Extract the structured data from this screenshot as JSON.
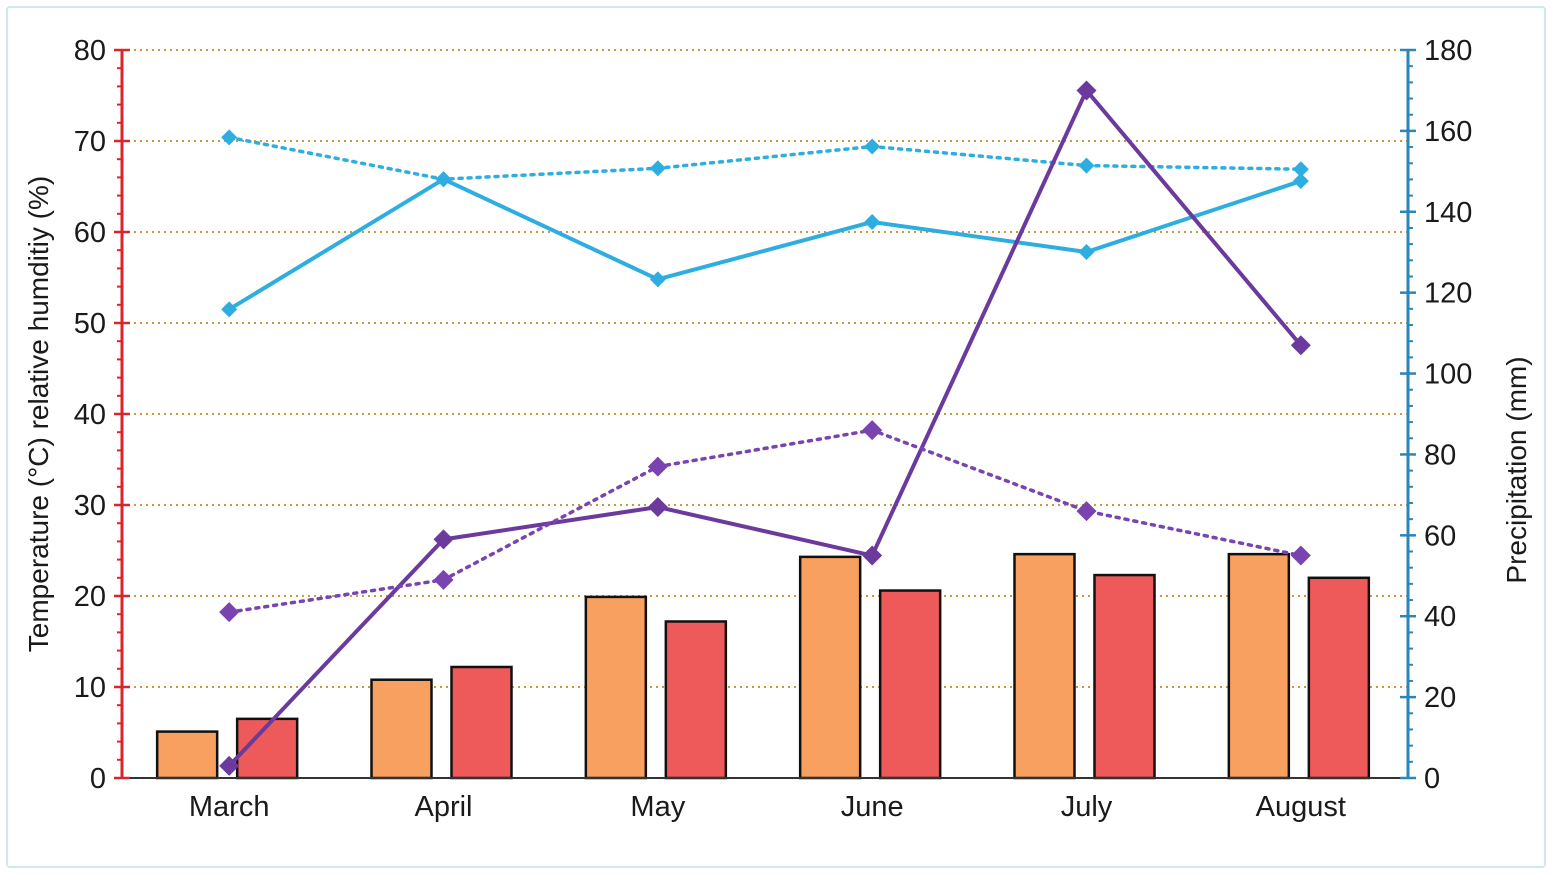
{
  "chart_data": {
    "type": "bar",
    "categories": [
      "March",
      "April",
      "May",
      "June",
      "July",
      "August"
    ],
    "y_left": {
      "label": "Temperature (°C) relative humditiy (%)",
      "range": [
        0,
        80
      ],
      "ticks": [
        0,
        10,
        20,
        30,
        40,
        50,
        60,
        70,
        80
      ],
      "axis_color": "#d9262b"
    },
    "y_right": {
      "label": "Precipitation (mm)",
      "range": [
        0,
        180
      ],
      "ticks": [
        0,
        20,
        40,
        60,
        80,
        100,
        120,
        140,
        160,
        180
      ],
      "axis_color": "#2a86b8"
    },
    "grid": {
      "horizontal": true,
      "style": "dotted",
      "color": "#c99a3c"
    },
    "series": [
      {
        "kind": "bar",
        "axis": "left",
        "color": "#f7a060",
        "values": [
          5.1,
          10.8,
          19.9,
          24.3,
          24.6,
          24.6
        ]
      },
      {
        "kind": "bar",
        "axis": "left",
        "color": "#ee5a5a",
        "values": [
          6.5,
          12.2,
          17.2,
          20.6,
          22.3,
          22.0
        ]
      },
      {
        "kind": "line",
        "axis": "left",
        "style": "solid",
        "color": "#2eaee0",
        "values": [
          51.5,
          65.8,
          54.8,
          61.1,
          57.8,
          65.6
        ]
      },
      {
        "kind": "line",
        "axis": "left",
        "style": "dotted",
        "color": "#2eaee0",
        "values": [
          70.4,
          65.8,
          67.0,
          69.4,
          67.3,
          66.9
        ]
      },
      {
        "kind": "line",
        "axis": "right",
        "style": "solid",
        "color": "#6b3a9c",
        "values": [
          3,
          59,
          67,
          55,
          170,
          107
        ]
      },
      {
        "kind": "line",
        "axis": "right",
        "style": "dotted",
        "color": "#7a44b0",
        "values": [
          41,
          49,
          77,
          86,
          66,
          55
        ]
      }
    ]
  }
}
